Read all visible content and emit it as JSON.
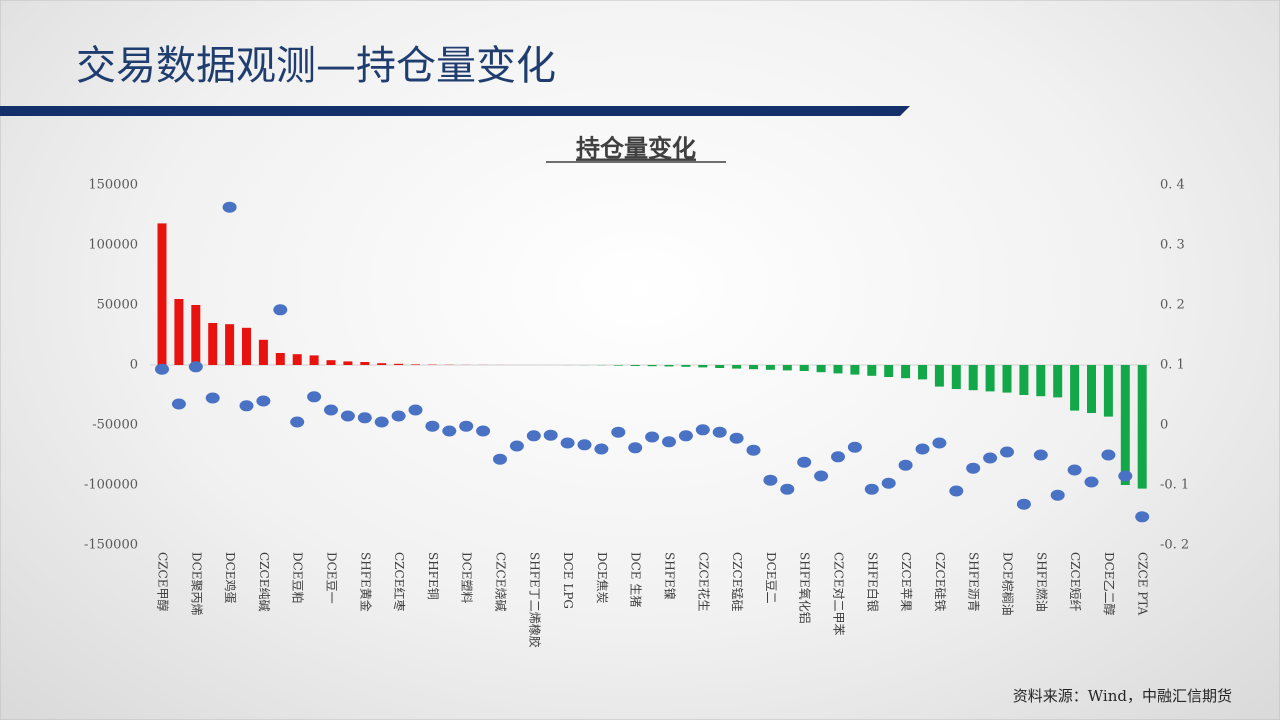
{
  "page_title": "交易数据观测—持仓量变化",
  "source": "资料来源：Wind，中融汇信期货",
  "chart_data": {
    "type": "bar",
    "title": "持仓量变化",
    "categories": [
      "CZCE甲醇",
      null,
      "DCE聚丙烯",
      null,
      "DCE鸡蛋",
      null,
      "CZCE纯碱",
      null,
      "DCE豆粕",
      null,
      "DCE豆一",
      null,
      "SHFE黄金",
      null,
      "CZCE红枣",
      null,
      "SHFE铜",
      null,
      "DCE塑料",
      null,
      "CZCE烧碱",
      null,
      "SHFE丁二烯橡胶",
      null,
      "DCE LPG",
      null,
      "DCE焦炭",
      null,
      "DCE 生猪",
      null,
      "SHFE镍",
      null,
      "CZCE花生",
      null,
      "CZCE锰硅",
      null,
      "DCE豆二",
      null,
      "SHFE氧化铝",
      null,
      "CZCE对二甲苯",
      null,
      "SHFE白银",
      null,
      "CZCE苹果",
      null,
      "CZCE硅铁",
      null,
      "SHFE沥青",
      null,
      "DCE棕榈油",
      null,
      "SHFE燃油",
      null,
      "CZCE短纤",
      null,
      "DCE乙二醇",
      null,
      "CZCE PTA"
    ],
    "series": [
      {
        "positive_color": "#e8130f",
        "negative_color": "#12a84a",
        "values": [
          118000,
          55000,
          50000,
          35000,
          34000,
          31000,
          21000,
          10000,
          9000,
          8000,
          4000,
          3000,
          2500,
          1500,
          1000,
          500,
          300,
          200,
          100,
          100,
          50,
          0,
          0,
          0,
          -50,
          -100,
          -200,
          -500,
          -800,
          -1000,
          -1200,
          -1500,
          -2000,
          -2500,
          -3000,
          -3500,
          -4000,
          -4500,
          -5000,
          -6000,
          -7000,
          -8000,
          -9000,
          -10000,
          -11000,
          -12000,
          -18000,
          -20000,
          -21000,
          -22000,
          -23000,
          -25000,
          -26000,
          -27000,
          -38000,
          -40000,
          -43000,
          -100000,
          -103000
        ]
      },
      {
        "type": "scatter",
        "axis": "y2",
        "color": "#4a72c4",
        "values": [
          0.093,
          0.035,
          0.097,
          0.045,
          0.363,
          0.032,
          0.04,
          0.192,
          0.005,
          0.047,
          0.025,
          0.015,
          0.012,
          0.005,
          0.015,
          0.025,
          -0.002,
          -0.01,
          -0.002,
          -0.01,
          -0.057,
          -0.035,
          -0.018,
          -0.017,
          -0.03,
          -0.033,
          -0.04,
          -0.012,
          -0.038,
          -0.02,
          -0.028,
          -0.018,
          -0.008,
          -0.012,
          -0.022,
          -0.042,
          -0.092,
          -0.107,
          -0.062,
          -0.085,
          -0.053,
          -0.037,
          -0.107,
          -0.097,
          -0.067,
          -0.04,
          -0.03,
          -0.11,
          -0.072,
          -0.055,
          -0.045,
          -0.132,
          -0.05,
          -0.117,
          -0.075,
          -0.095,
          -0.05,
          -0.085,
          -0.153
        ]
      }
    ],
    "ylim": [
      -150000,
      150000
    ],
    "yticks": [
      -150000,
      -100000,
      -50000,
      0,
      50000,
      100000,
      150000
    ],
    "y2lim": [
      -0.2,
      0.4
    ],
    "y2ticks": [
      {
        "value": -0.2,
        "label": "-0. 2"
      },
      {
        "value": -0.1,
        "label": "-0. 1"
      },
      0,
      {
        "value": 0.1,
        "label": "0. 1"
      },
      {
        "value": 0.2,
        "label": "0. 2"
      },
      {
        "value": 0.3,
        "label": "0. 3"
      },
      {
        "value": 0.4,
        "label": "0. 4"
      }
    ]
  }
}
